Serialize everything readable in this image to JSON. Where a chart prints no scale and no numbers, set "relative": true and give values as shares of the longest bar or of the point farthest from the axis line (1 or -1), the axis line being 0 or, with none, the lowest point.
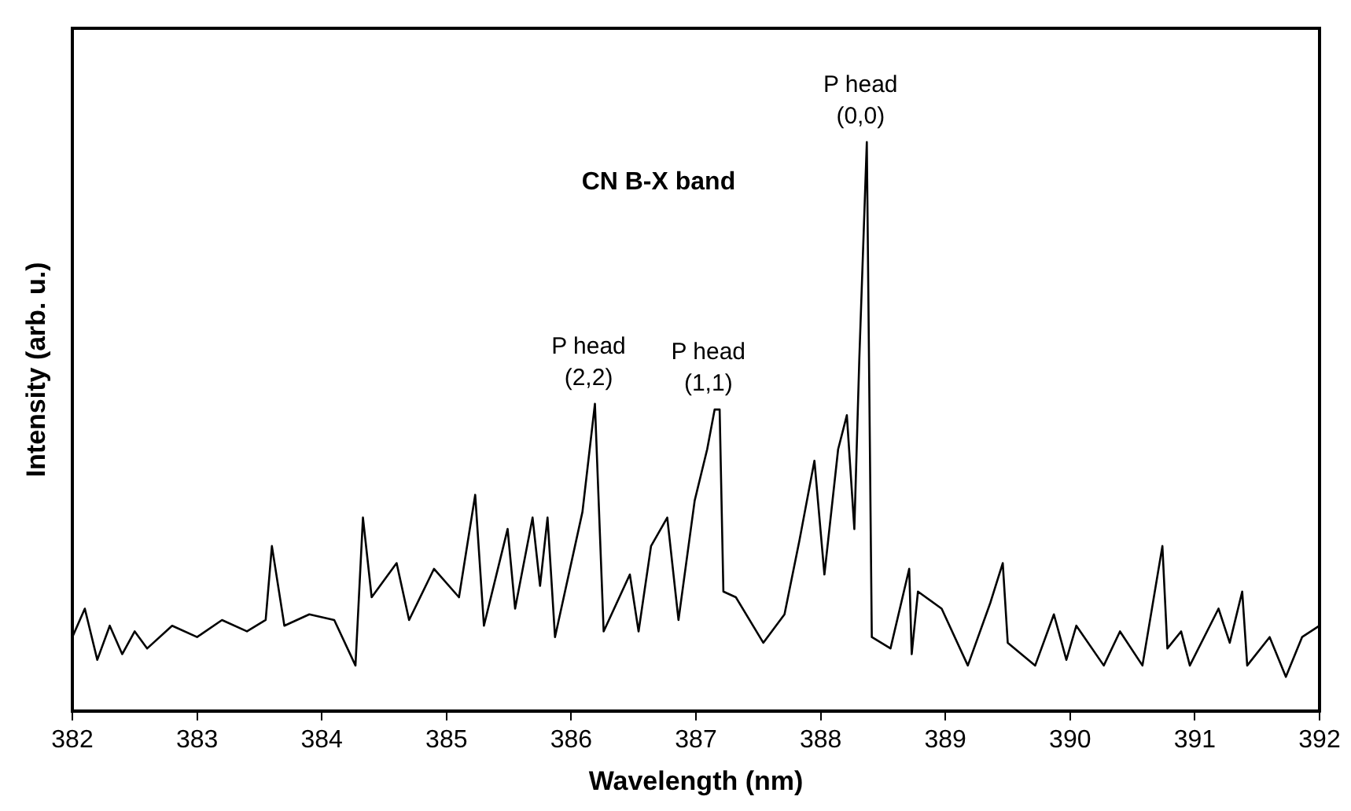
{
  "chart_data": {
    "type": "line",
    "title": "CN B-X band",
    "xlabel": "Wavelength (nm)",
    "ylabel": "Intensity (arb. u.)",
    "relative": true,
    "xlim": [
      382,
      392
    ],
    "xticks": [
      382,
      383,
      384,
      385,
      386,
      387,
      388,
      389,
      390,
      391,
      392
    ],
    "marker": "none",
    "series": [
      {
        "color": "#000000",
        "x": [
          382.0,
          382.1,
          382.2,
          382.3,
          382.4,
          382.5,
          382.6,
          382.8,
          383.0,
          383.2,
          383.4,
          383.55,
          383.6,
          383.7,
          383.9,
          384.1,
          384.27,
          384.33,
          384.4,
          384.6,
          384.7,
          384.9,
          385.1,
          385.23,
          385.3,
          385.49,
          385.55,
          385.69,
          385.75,
          385.81,
          385.87,
          386.09,
          386.19,
          386.26,
          386.47,
          386.54,
          386.64,
          386.77,
          386.86,
          386.99,
          387.09,
          387.15,
          387.19,
          387.22,
          387.32,
          387.54,
          387.71,
          387.83,
          387.95,
          388.03,
          388.14,
          388.21,
          388.27,
          388.31,
          388.37,
          388.41,
          388.56,
          388.71,
          388.73,
          388.78,
          388.97,
          389.18,
          389.36,
          389.46,
          389.5,
          389.72,
          389.87,
          389.97,
          390.05,
          390.27,
          390.4,
          390.58,
          390.74,
          390.78,
          390.89,
          390.96,
          391.19,
          391.28,
          391.38,
          391.42,
          391.6,
          391.73,
          391.86,
          392.0
        ],
        "values": [
          0.13,
          0.18,
          0.09,
          0.15,
          0.1,
          0.14,
          0.11,
          0.15,
          0.13,
          0.16,
          0.14,
          0.16,
          0.29,
          0.15,
          0.17,
          0.16,
          0.08,
          0.34,
          0.2,
          0.26,
          0.16,
          0.25,
          0.2,
          0.38,
          0.15,
          0.32,
          0.18,
          0.34,
          0.22,
          0.34,
          0.13,
          0.35,
          0.54,
          0.14,
          0.24,
          0.14,
          0.29,
          0.34,
          0.16,
          0.37,
          0.46,
          0.53,
          0.53,
          0.21,
          0.2,
          0.12,
          0.17,
          0.3,
          0.44,
          0.24,
          0.46,
          0.52,
          0.32,
          0.62,
          1.0,
          0.13,
          0.11,
          0.25,
          0.1,
          0.21,
          0.18,
          0.08,
          0.19,
          0.26,
          0.12,
          0.08,
          0.17,
          0.09,
          0.15,
          0.08,
          0.14,
          0.08,
          0.29,
          0.11,
          0.14,
          0.08,
          0.18,
          0.12,
          0.21,
          0.08,
          0.13,
          0.06,
          0.13,
          0.15
        ]
      }
    ],
    "annotations": [
      {
        "text": "P head\n(2,2)",
        "x": 386.19,
        "y": 0.54
      },
      {
        "text": "P head\n(1,1)",
        "x": 387.15,
        "y": 0.53
      },
      {
        "text": "P head\n(0,0)",
        "x": 388.37,
        "y": 1.0
      }
    ]
  }
}
